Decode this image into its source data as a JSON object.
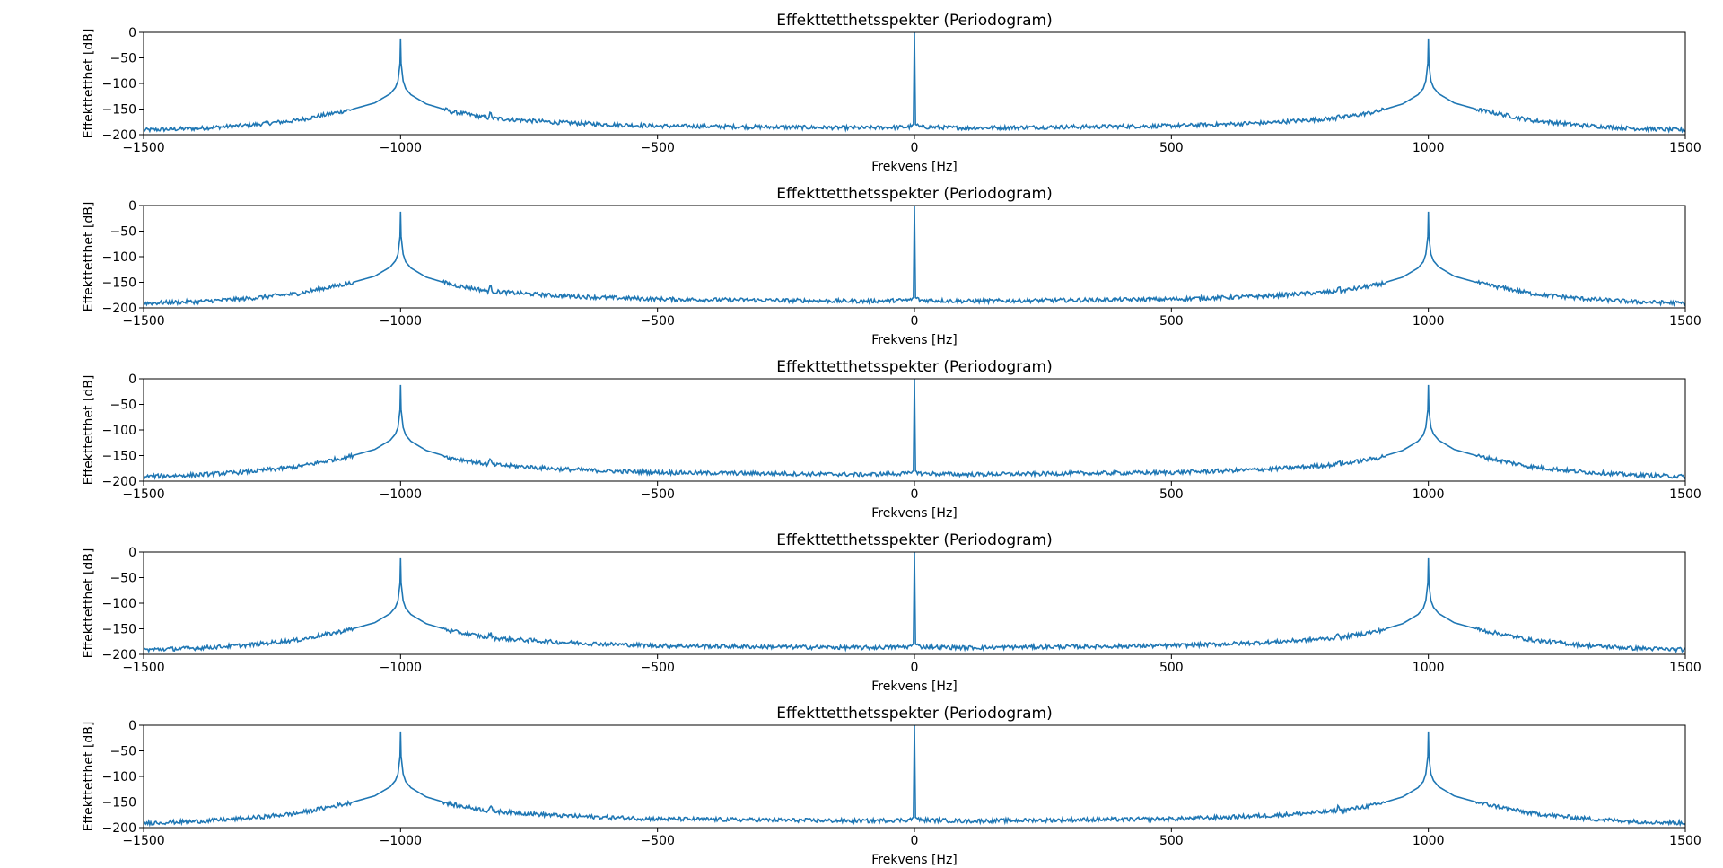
{
  "chart_data": [
    {
      "type": "line",
      "title": "Effekttetthetsspekter (Periodogram)",
      "xlabel": "Frekvens [Hz]",
      "ylabel": "Effekttetthet [dB]",
      "xlim": [
        -1500,
        1500
      ],
      "ylim": [
        -200,
        0
      ],
      "xticks": [
        -1500,
        -1000,
        -500,
        0,
        500,
        1000,
        1500
      ],
      "xtick_labels": [
        "−1500",
        "−1000",
        "−500",
        "0",
        "500",
        "1000",
        "1500"
      ],
      "yticks": [
        0,
        -50,
        -100,
        -150,
        -200
      ],
      "ytick_labels": [
        "0",
        "−50",
        "−100",
        "−150",
        "−200"
      ],
      "grid": false,
      "line_color": "#1f77b4",
      "series": [
        {
          "x": [
            -1500,
            -1400,
            -1300,
            -1200,
            -1100,
            -1050,
            -1020,
            -1010,
            -1005,
            -1001,
            -1000,
            -999,
            -995,
            -990,
            -980,
            -950,
            -900,
            -830,
            -825,
            -820,
            -700,
            -600,
            -500,
            -400,
            -300,
            -200,
            -100,
            -10,
            -2,
            0,
            2,
            10,
            100,
            200,
            300,
            400,
            500,
            600,
            700,
            820,
            825,
            830,
            900,
            950,
            980,
            990,
            995,
            999,
            1000,
            1001,
            1005,
            1010,
            1020,
            1050,
            1100,
            1200,
            1300,
            1400,
            1500
          ],
          "y": [
            -191,
            -188,
            -182,
            -172,
            -152,
            -138,
            -120,
            -108,
            -95,
            -60,
            -12,
            -60,
            -95,
            -110,
            -122,
            -140,
            -155,
            -167,
            -158,
            -168,
            -176,
            -180,
            -183,
            -184,
            -185,
            -186,
            -187,
            -185,
            -180,
            0,
            -180,
            -185,
            -187,
            -186,
            -185,
            -184,
            -183,
            -180,
            -176,
            -168,
            -158,
            -167,
            -155,
            -140,
            -122,
            -110,
            -95,
            -60,
            -12,
            -60,
            -95,
            -108,
            -120,
            -138,
            -152,
            -172,
            -182,
            -188,
            -191
          ]
        }
      ]
    },
    {
      "type": "line",
      "title": "Effekttetthetsspekter (Periodogram)",
      "xlabel": "Frekvens [Hz]",
      "ylabel": "Effekttetthet [dB]",
      "xlim": [
        -1500,
        1500
      ],
      "ylim": [
        -200,
        0
      ],
      "xticks": [
        -1500,
        -1000,
        -500,
        0,
        500,
        1000,
        1500
      ],
      "xtick_labels": [
        "−1500",
        "−1000",
        "−500",
        "0",
        "500",
        "1000",
        "1500"
      ],
      "yticks": [
        0,
        -50,
        -100,
        -150,
        -200
      ],
      "ytick_labels": [
        "0",
        "−50",
        "−100",
        "−150",
        "−200"
      ],
      "grid": false,
      "line_color": "#1f77b4",
      "series": [
        {
          "x": [
            -1500,
            -1400,
            -1300,
            -1200,
            -1100,
            -1050,
            -1020,
            -1010,
            -1005,
            -1001,
            -1000,
            -999,
            -995,
            -990,
            -980,
            -950,
            -900,
            -830,
            -825,
            -820,
            -700,
            -600,
            -500,
            -400,
            -300,
            -200,
            -100,
            -10,
            -2,
            0,
            2,
            10,
            100,
            200,
            300,
            400,
            500,
            600,
            700,
            820,
            825,
            830,
            900,
            950,
            980,
            990,
            995,
            999,
            1000,
            1001,
            1005,
            1010,
            1020,
            1050,
            1100,
            1200,
            1300,
            1400,
            1500
          ],
          "y": [
            -191,
            -188,
            -182,
            -172,
            -152,
            -138,
            -120,
            -108,
            -95,
            -60,
            -12,
            -60,
            -95,
            -110,
            -122,
            -140,
            -155,
            -167,
            -158,
            -168,
            -176,
            -180,
            -183,
            -184,
            -185,
            -186,
            -187,
            -185,
            -180,
            0,
            -180,
            -185,
            -187,
            -186,
            -185,
            -184,
            -183,
            -180,
            -176,
            -168,
            -158,
            -167,
            -155,
            -140,
            -122,
            -110,
            -95,
            -60,
            -12,
            -60,
            -95,
            -108,
            -120,
            -138,
            -152,
            -172,
            -182,
            -188,
            -191
          ]
        }
      ]
    },
    {
      "type": "line",
      "title": "Effekttetthetsspekter (Periodogram)",
      "xlabel": "Frekvens [Hz]",
      "ylabel": "Effekttetthet [dB]",
      "xlim": [
        -1500,
        1500
      ],
      "ylim": [
        -200,
        0
      ],
      "xticks": [
        -1500,
        -1000,
        -500,
        0,
        500,
        1000,
        1500
      ],
      "xtick_labels": [
        "−1500",
        "−1000",
        "−500",
        "0",
        "500",
        "1000",
        "1500"
      ],
      "yticks": [
        0,
        -50,
        -100,
        -150,
        -200
      ],
      "ytick_labels": [
        "0",
        "−50",
        "−100",
        "−150",
        "−200"
      ],
      "grid": false,
      "line_color": "#1f77b4",
      "series": [
        {
          "x": [
            -1500,
            -1400,
            -1300,
            -1200,
            -1100,
            -1050,
            -1020,
            -1010,
            -1005,
            -1001,
            -1000,
            -999,
            -995,
            -990,
            -980,
            -950,
            -900,
            -830,
            -825,
            -820,
            -700,
            -600,
            -500,
            -400,
            -300,
            -200,
            -100,
            -10,
            -2,
            0,
            2,
            10,
            100,
            200,
            300,
            400,
            500,
            600,
            700,
            820,
            825,
            830,
            900,
            950,
            980,
            990,
            995,
            999,
            1000,
            1001,
            1005,
            1010,
            1020,
            1050,
            1100,
            1200,
            1300,
            1400,
            1500
          ],
          "y": [
            -191,
            -188,
            -182,
            -172,
            -152,
            -138,
            -120,
            -108,
            -95,
            -60,
            -12,
            -60,
            -95,
            -110,
            -122,
            -140,
            -155,
            -167,
            -158,
            -168,
            -176,
            -180,
            -183,
            -184,
            -185,
            -186,
            -187,
            -185,
            -180,
            0,
            -180,
            -185,
            -187,
            -186,
            -185,
            -184,
            -183,
            -180,
            -176,
            -168,
            -158,
            -167,
            -155,
            -140,
            -122,
            -110,
            -95,
            -60,
            -12,
            -60,
            -95,
            -108,
            -120,
            -138,
            -152,
            -172,
            -182,
            -188,
            -191
          ]
        }
      ]
    },
    {
      "type": "line",
      "title": "Effekttetthetsspekter (Periodogram)",
      "xlabel": "Frekvens [Hz]",
      "ylabel": "Effekttetthet [dB]",
      "xlim": [
        -1500,
        1500
      ],
      "ylim": [
        -200,
        0
      ],
      "xticks": [
        -1500,
        -1000,
        -500,
        0,
        500,
        1000,
        1500
      ],
      "xtick_labels": [
        "−1500",
        "−1000",
        "−500",
        "0",
        "500",
        "1000",
        "1500"
      ],
      "yticks": [
        0,
        -50,
        -100,
        -150,
        -200
      ],
      "ytick_labels": [
        "0",
        "−50",
        "−100",
        "−150",
        "−200"
      ],
      "grid": false,
      "line_color": "#1f77b4",
      "series": [
        {
          "x": [
            -1500,
            -1400,
            -1300,
            -1200,
            -1100,
            -1050,
            -1020,
            -1010,
            -1005,
            -1001,
            -1000,
            -999,
            -995,
            -990,
            -980,
            -950,
            -900,
            -830,
            -825,
            -820,
            -700,
            -600,
            -500,
            -400,
            -300,
            -200,
            -100,
            -10,
            -2,
            0,
            2,
            10,
            100,
            200,
            300,
            400,
            500,
            600,
            700,
            820,
            825,
            830,
            900,
            950,
            980,
            990,
            995,
            999,
            1000,
            1001,
            1005,
            1010,
            1020,
            1050,
            1100,
            1200,
            1300,
            1400,
            1500
          ],
          "y": [
            -191,
            -188,
            -182,
            -172,
            -152,
            -138,
            -120,
            -108,
            -95,
            -60,
            -12,
            -60,
            -95,
            -110,
            -122,
            -140,
            -155,
            -167,
            -158,
            -168,
            -176,
            -180,
            -183,
            -184,
            -185,
            -186,
            -187,
            -185,
            -180,
            0,
            -180,
            -185,
            -187,
            -186,
            -185,
            -184,
            -183,
            -180,
            -176,
            -168,
            -158,
            -167,
            -155,
            -140,
            -122,
            -110,
            -95,
            -60,
            -12,
            -60,
            -95,
            -108,
            -120,
            -138,
            -152,
            -172,
            -182,
            -188,
            -191
          ]
        }
      ]
    },
    {
      "type": "line",
      "title": "Effekttetthetsspekter (Periodogram)",
      "xlabel": "Frekvens [Hz]",
      "ylabel": "Effekttetthet [dB]",
      "xlim": [
        -1500,
        1500
      ],
      "ylim": [
        -200,
        0
      ],
      "xticks": [
        -1500,
        -1000,
        -500,
        0,
        500,
        1000,
        1500
      ],
      "xtick_labels": [
        "−1500",
        "−1000",
        "−500",
        "0",
        "500",
        "1000",
        "1500"
      ],
      "yticks": [
        0,
        -50,
        -100,
        -150,
        -200
      ],
      "ytick_labels": [
        "0",
        "−50",
        "−100",
        "−150",
        "−200"
      ],
      "grid": false,
      "line_color": "#1f77b4",
      "series": [
        {
          "x": [
            -1500,
            -1400,
            -1300,
            -1200,
            -1100,
            -1050,
            -1020,
            -1010,
            -1005,
            -1001,
            -1000,
            -999,
            -995,
            -990,
            -980,
            -950,
            -900,
            -830,
            -825,
            -820,
            -700,
            -600,
            -500,
            -400,
            -300,
            -200,
            -100,
            -10,
            -2,
            0,
            2,
            10,
            100,
            200,
            300,
            400,
            500,
            600,
            700,
            820,
            825,
            830,
            900,
            950,
            980,
            990,
            995,
            999,
            1000,
            1001,
            1005,
            1010,
            1020,
            1050,
            1100,
            1200,
            1300,
            1400,
            1500
          ],
          "y": [
            -191,
            -188,
            -182,
            -172,
            -152,
            -138,
            -120,
            -108,
            -95,
            -60,
            -12,
            -60,
            -95,
            -110,
            -122,
            -140,
            -155,
            -167,
            -158,
            -168,
            -176,
            -180,
            -183,
            -184,
            -185,
            -186,
            -187,
            -185,
            -180,
            0,
            -180,
            -185,
            -187,
            -186,
            -185,
            -184,
            -183,
            -180,
            -176,
            -168,
            -158,
            -167,
            -155,
            -140,
            -122,
            -110,
            -95,
            -60,
            -12,
            -60,
            -95,
            -108,
            -120,
            -138,
            -152,
            -172,
            -182,
            -188,
            -191
          ]
        }
      ]
    }
  ]
}
